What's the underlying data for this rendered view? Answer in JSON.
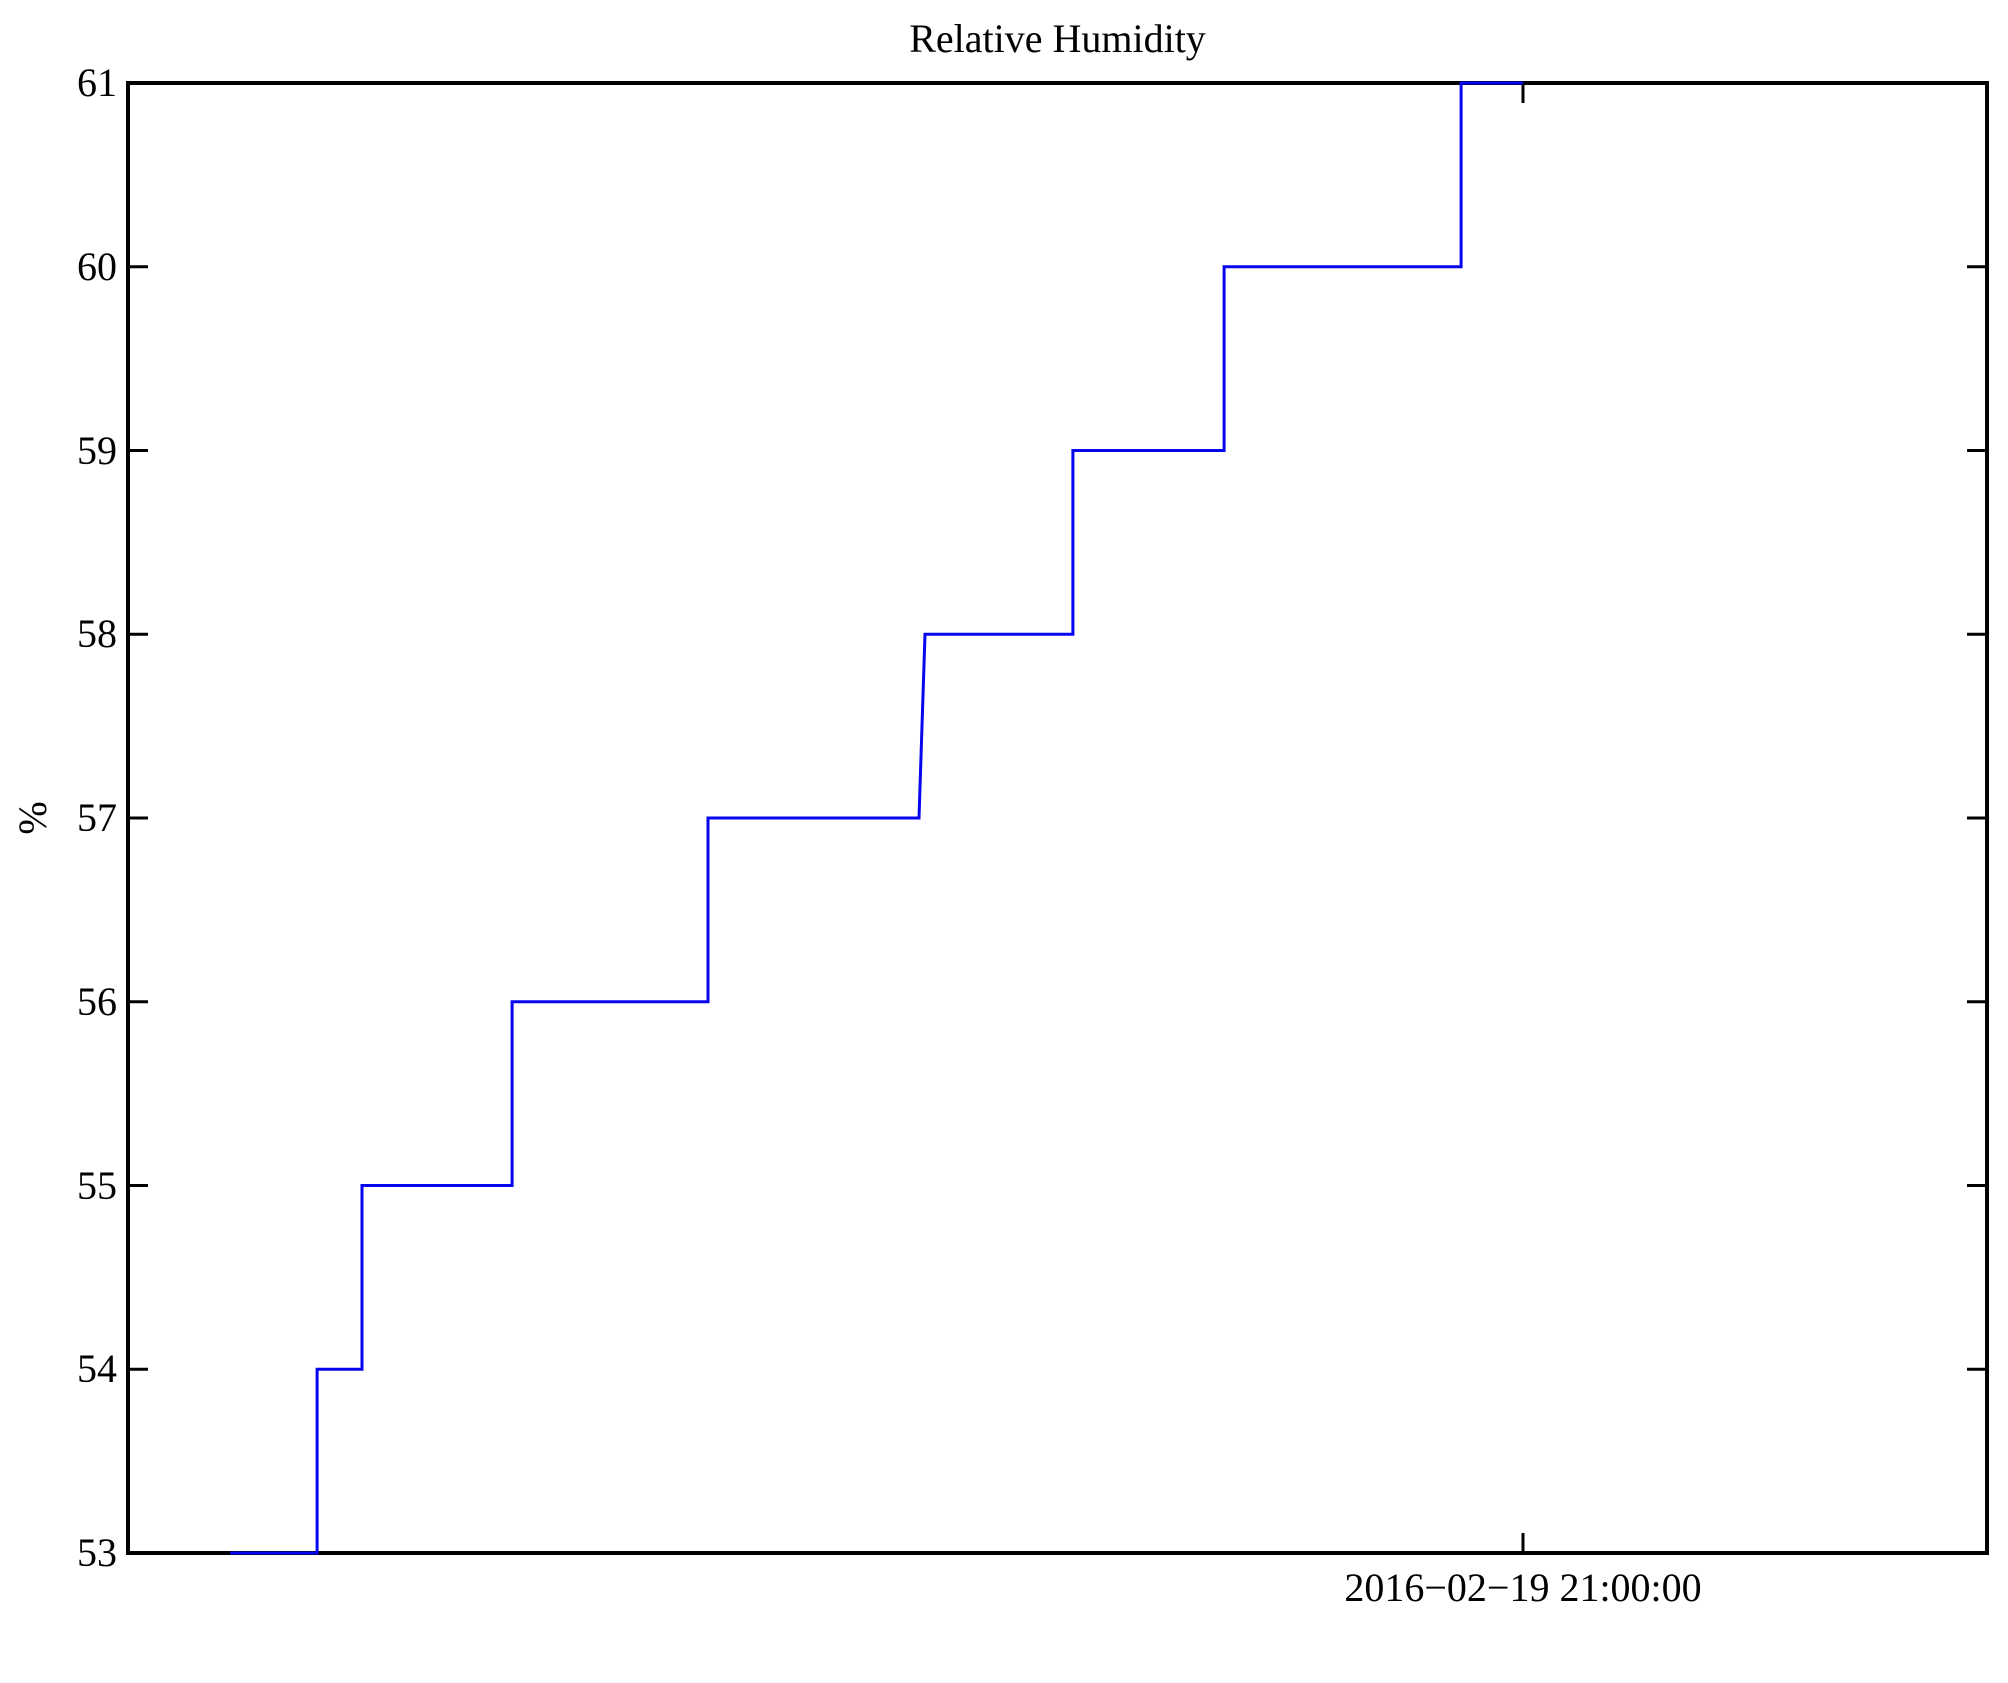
{
  "page": {
    "background": "#ffffff"
  },
  "chart_data": {
    "type": "line",
    "subtype": "step",
    "title": "Relative Humidity",
    "ylabel": "%",
    "xlabel": "",
    "ylim": [
      53,
      61
    ],
    "yticks": [
      53,
      54,
      55,
      56,
      57,
      58,
      59,
      60,
      61
    ],
    "xtick": {
      "label": "2016−02−19 21:00:00",
      "x_fraction": 0.7504,
      "mirrored_on_top": true
    },
    "grid": false,
    "legend": null,
    "line_color": "#0505ee",
    "axis_color": "#000000",
    "series": [
      {
        "name": "Relative Humidity",
        "unit": "%",
        "points": [
          {
            "x_fraction": 0.0549,
            "y": 53
          },
          {
            "x_fraction": 0.1017,
            "y": 53
          },
          {
            "x_fraction": 0.1017,
            "y": 54
          },
          {
            "x_fraction": 0.1259,
            "y": 54
          },
          {
            "x_fraction": 0.1259,
            "y": 55
          },
          {
            "x_fraction": 0.2066,
            "y": 55
          },
          {
            "x_fraction": 0.2066,
            "y": 56
          },
          {
            "x_fraction": 0.312,
            "y": 56
          },
          {
            "x_fraction": 0.312,
            "y": 57
          },
          {
            "x_fraction": 0.4255,
            "y": 57
          },
          {
            "x_fraction": 0.4287,
            "y": 58
          },
          {
            "x_fraction": 0.5083,
            "y": 58
          },
          {
            "x_fraction": 0.5083,
            "y": 59
          },
          {
            "x_fraction": 0.5896,
            "y": 59
          },
          {
            "x_fraction": 0.5896,
            "y": 60
          },
          {
            "x_fraction": 0.7171,
            "y": 60
          },
          {
            "x_fraction": 0.7171,
            "y": 61
          },
          {
            "x_fraction": 0.7504,
            "y": 61
          }
        ]
      }
    ]
  }
}
